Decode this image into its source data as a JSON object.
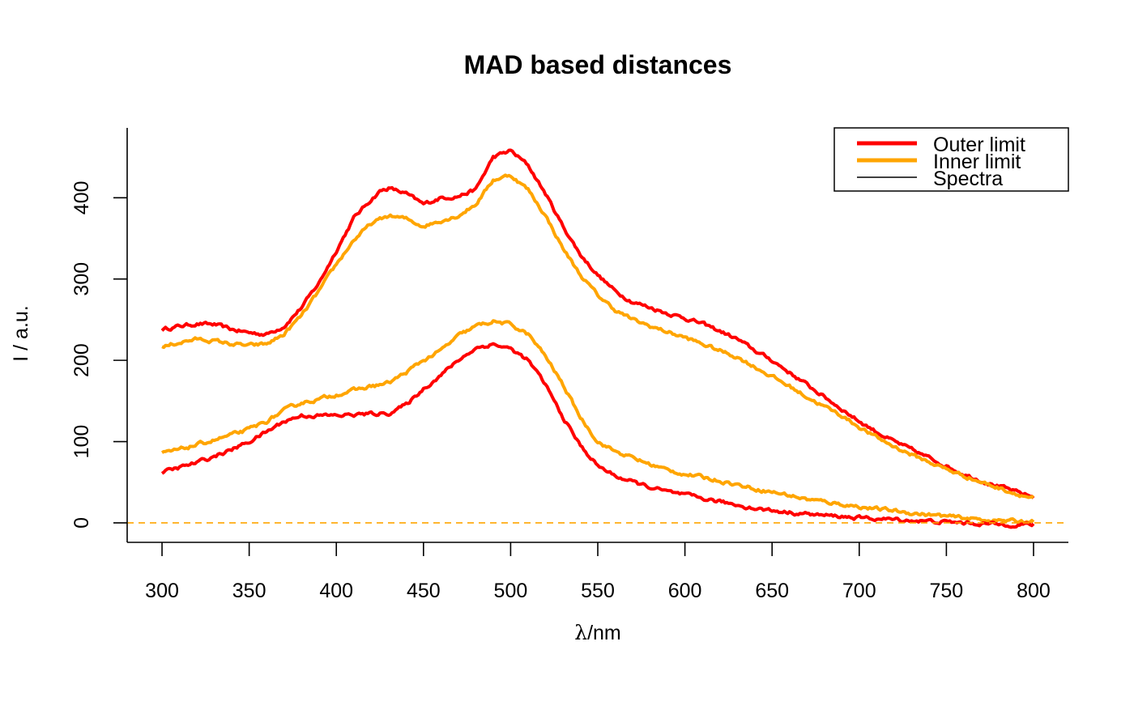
{
  "chart_data": {
    "type": "line",
    "title": "MAD based distances",
    "xlabel_symbol": "λ",
    "xlabel_unit": "/nm",
    "ylabel": "I / a.u.",
    "xlim": [
      280,
      820
    ],
    "ylim": [
      -24,
      486
    ],
    "xticks": [
      300,
      350,
      400,
      450,
      500,
      550,
      600,
      650,
      700,
      750,
      800
    ],
    "yticks": [
      0,
      100,
      200,
      300,
      400
    ],
    "grid": false,
    "legend_position": "top-right",
    "colors": {
      "outer": "#FF0000",
      "inner": "#FFA500",
      "spectra": "#000000",
      "zero_line": "#FFA500"
    },
    "legend": [
      {
        "label": "Outer limit",
        "color": "#FF0000",
        "width": "thick"
      },
      {
        "label": "Inner limit",
        "color": "#FFA500",
        "width": "thick"
      },
      {
        "label": "Spectra",
        "color": "#000000",
        "width": "thin"
      }
    ],
    "reference_line": {
      "y": 0,
      "style": "dashed",
      "color": "#FFA500"
    },
    "series": [
      {
        "role": "outer-upper",
        "color": "#FF0000",
        "points": [
          [
            300,
            238
          ],
          [
            310,
            242
          ],
          [
            320,
            245
          ],
          [
            330,
            244
          ],
          [
            340,
            238
          ],
          [
            350,
            234
          ],
          [
            360,
            232
          ],
          [
            370,
            242
          ],
          [
            380,
            265
          ],
          [
            390,
            295
          ],
          [
            400,
            335
          ],
          [
            410,
            375
          ],
          [
            420,
            398
          ],
          [
            425,
            408
          ],
          [
            430,
            412
          ],
          [
            440,
            405
          ],
          [
            450,
            392
          ],
          [
            460,
            400
          ],
          [
            470,
            402
          ],
          [
            480,
            410
          ],
          [
            490,
            450
          ],
          [
            500,
            458
          ],
          [
            510,
            440
          ],
          [
            520,
            405
          ],
          [
            530,
            365
          ],
          [
            540,
            330
          ],
          [
            550,
            305
          ],
          [
            560,
            285
          ],
          [
            570,
            272
          ],
          [
            580,
            265
          ],
          [
            590,
            258
          ],
          [
            600,
            252
          ],
          [
            610,
            245
          ],
          [
            620,
            236
          ],
          [
            630,
            226
          ],
          [
            640,
            212
          ],
          [
            650,
            200
          ],
          [
            660,
            185
          ],
          [
            670,
            170
          ],
          [
            680,
            155
          ],
          [
            690,
            140
          ],
          [
            700,
            125
          ],
          [
            710,
            112
          ],
          [
            720,
            100
          ],
          [
            730,
            90
          ],
          [
            740,
            80
          ],
          [
            750,
            70
          ],
          [
            760,
            60
          ],
          [
            770,
            52
          ],
          [
            780,
            45
          ],
          [
            790,
            38
          ],
          [
            800,
            32
          ]
        ]
      },
      {
        "role": "inner-upper",
        "color": "#FFA500",
        "points": [
          [
            300,
            216
          ],
          [
            310,
            222
          ],
          [
            320,
            226
          ],
          [
            330,
            224
          ],
          [
            340,
            220
          ],
          [
            350,
            218
          ],
          [
            360,
            220
          ],
          [
            370,
            232
          ],
          [
            380,
            255
          ],
          [
            390,
            285
          ],
          [
            400,
            318
          ],
          [
            410,
            348
          ],
          [
            420,
            368
          ],
          [
            430,
            378
          ],
          [
            440,
            374
          ],
          [
            450,
            365
          ],
          [
            460,
            372
          ],
          [
            470,
            378
          ],
          [
            480,
            392
          ],
          [
            490,
            422
          ],
          [
            500,
            428
          ],
          [
            510,
            410
          ],
          [
            520,
            378
          ],
          [
            530,
            338
          ],
          [
            540,
            305
          ],
          [
            550,
            280
          ],
          [
            560,
            262
          ],
          [
            570,
            250
          ],
          [
            580,
            242
          ],
          [
            590,
            235
          ],
          [
            600,
            228
          ],
          [
            610,
            220
          ],
          [
            620,
            212
          ],
          [
            630,
            204
          ],
          [
            640,
            192
          ],
          [
            650,
            180
          ],
          [
            660,
            168
          ],
          [
            670,
            155
          ],
          [
            680,
            143
          ],
          [
            690,
            132
          ],
          [
            700,
            118
          ],
          [
            710,
            105
          ],
          [
            720,
            94
          ],
          [
            730,
            84
          ],
          [
            740,
            75
          ],
          [
            750,
            66
          ],
          [
            760,
            58
          ],
          [
            770,
            50
          ],
          [
            780,
            43
          ],
          [
            790,
            36
          ],
          [
            800,
            30
          ]
        ]
      },
      {
        "role": "inner-lower",
        "color": "#FFA500",
        "points": [
          [
            300,
            85
          ],
          [
            310,
            90
          ],
          [
            320,
            96
          ],
          [
            330,
            102
          ],
          [
            340,
            108
          ],
          [
            350,
            115
          ],
          [
            360,
            125
          ],
          [
            370,
            138
          ],
          [
            380,
            148
          ],
          [
            390,
            152
          ],
          [
            400,
            158
          ],
          [
            410,
            163
          ],
          [
            420,
            168
          ],
          [
            430,
            172
          ],
          [
            440,
            185
          ],
          [
            450,
            200
          ],
          [
            460,
            212
          ],
          [
            470,
            230
          ],
          [
            480,
            242
          ],
          [
            490,
            248
          ],
          [
            500,
            244
          ],
          [
            510,
            232
          ],
          [
            520,
            205
          ],
          [
            530,
            170
          ],
          [
            540,
            130
          ],
          [
            550,
            100
          ],
          [
            560,
            88
          ],
          [
            570,
            80
          ],
          [
            580,
            72
          ],
          [
            590,
            65
          ],
          [
            600,
            60
          ],
          [
            610,
            56
          ],
          [
            620,
            52
          ],
          [
            630,
            47
          ],
          [
            640,
            42
          ],
          [
            650,
            38
          ],
          [
            660,
            34
          ],
          [
            670,
            29
          ],
          [
            680,
            26
          ],
          [
            690,
            23
          ],
          [
            700,
            20
          ],
          [
            710,
            17
          ],
          [
            720,
            15
          ],
          [
            730,
            12
          ],
          [
            740,
            10
          ],
          [
            750,
            8
          ],
          [
            760,
            6
          ],
          [
            770,
            4
          ],
          [
            780,
            3
          ],
          [
            790,
            2
          ],
          [
            800,
            2
          ]
        ]
      },
      {
        "role": "outer-lower",
        "color": "#FF0000",
        "points": [
          [
            300,
            62
          ],
          [
            310,
            68
          ],
          [
            320,
            74
          ],
          [
            330,
            82
          ],
          [
            340,
            90
          ],
          [
            350,
            100
          ],
          [
            360,
            112
          ],
          [
            370,
            125
          ],
          [
            380,
            132
          ],
          [
            390,
            132
          ],
          [
            400,
            132
          ],
          [
            410,
            133
          ],
          [
            420,
            134
          ],
          [
            430,
            135
          ],
          [
            440,
            145
          ],
          [
            450,
            165
          ],
          [
            460,
            182
          ],
          [
            470,
            200
          ],
          [
            480,
            215
          ],
          [
            490,
            220
          ],
          [
            500,
            214
          ],
          [
            510,
            200
          ],
          [
            520,
            170
          ],
          [
            530,
            130
          ],
          [
            540,
            95
          ],
          [
            550,
            70
          ],
          [
            560,
            58
          ],
          [
            570,
            50
          ],
          [
            580,
            44
          ],
          [
            590,
            38
          ],
          [
            600,
            34
          ],
          [
            610,
            30
          ],
          [
            620,
            26
          ],
          [
            630,
            22
          ],
          [
            640,
            18
          ],
          [
            650,
            15
          ],
          [
            660,
            13
          ],
          [
            670,
            11
          ],
          [
            680,
            9
          ],
          [
            690,
            8
          ],
          [
            700,
            6
          ],
          [
            710,
            5
          ],
          [
            720,
            4
          ],
          [
            730,
            3
          ],
          [
            740,
            2
          ],
          [
            750,
            1
          ],
          [
            760,
            0
          ],
          [
            770,
            -1
          ],
          [
            780,
            -2
          ],
          [
            790,
            -2
          ],
          [
            800,
            -2
          ]
        ]
      }
    ]
  }
}
